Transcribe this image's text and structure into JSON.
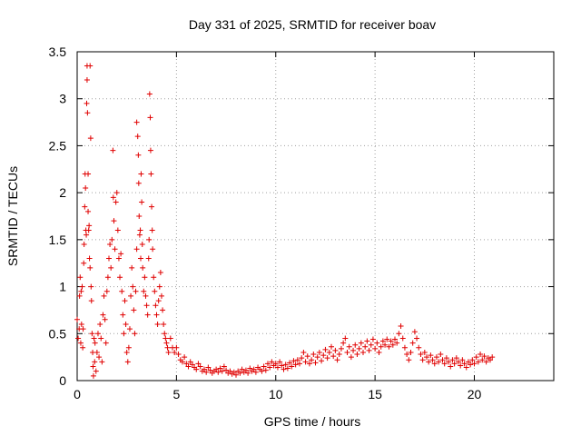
{
  "chart_data": {
    "type": "scatter",
    "title": "Day 331 of 2025, SRMTID for receiver boav",
    "xlabel": "GPS time / hours",
    "ylabel": "SRMTID / TECUs",
    "xlim": [
      0,
      24
    ],
    "ylim": [
      0,
      3.5
    ],
    "x_ticks": [
      0,
      5,
      10,
      15,
      20
    ],
    "x_tick_labels": [
      "0",
      "5",
      "10",
      "15",
      "20"
    ],
    "y_ticks": [
      0,
      0.5,
      1,
      1.5,
      2,
      2.5,
      3,
      3.5
    ],
    "y_tick_labels": [
      "0",
      "0.5",
      "1",
      "1.5",
      "2",
      "2.5",
      "3",
      "3.5"
    ],
    "grid": true,
    "marker": "plus",
    "color": "#e00000",
    "series": [
      {
        "name": "SRMTID",
        "points": [
          [
            0.0,
            0.65
          ],
          [
            0.05,
            0.45
          ],
          [
            0.1,
            0.55
          ],
          [
            0.12,
            0.9
          ],
          [
            0.15,
            1.1
          ],
          [
            0.18,
            0.4
          ],
          [
            0.2,
            0.95
          ],
          [
            0.22,
            0.6
          ],
          [
            0.25,
            1.0
          ],
          [
            0.28,
            0.35
          ],
          [
            0.3,
            0.55
          ],
          [
            0.33,
            1.25
          ],
          [
            0.35,
            1.45
          ],
          [
            0.38,
            1.85
          ],
          [
            0.4,
            2.2
          ],
          [
            0.42,
            2.05
          ],
          [
            0.44,
            1.6
          ],
          [
            0.46,
            1.55
          ],
          [
            0.48,
            2.95
          ],
          [
            0.5,
            3.35
          ],
          [
            0.5,
            3.2
          ],
          [
            0.52,
            2.85
          ],
          [
            0.55,
            2.2
          ],
          [
            0.55,
            1.8
          ],
          [
            0.58,
            1.6
          ],
          [
            0.6,
            1.65
          ],
          [
            0.62,
            1.3
          ],
          [
            0.65,
            1.2
          ],
          [
            0.65,
            3.35
          ],
          [
            0.68,
            2.58
          ],
          [
            0.7,
            1.0
          ],
          [
            0.72,
            0.85
          ],
          [
            0.75,
            0.5
          ],
          [
            0.78,
            0.3
          ],
          [
            0.8,
            0.15
          ],
          [
            0.82,
            0.05
          ],
          [
            0.85,
            0.45
          ],
          [
            0.88,
            0.2
          ],
          [
            0.9,
            0.4
          ],
          [
            0.95,
            0.1
          ],
          [
            1.0,
            0.3
          ],
          [
            1.05,
            0.5
          ],
          [
            1.1,
            0.25
          ],
          [
            1.15,
            0.6
          ],
          [
            1.2,
            0.45
          ],
          [
            1.25,
            0.2
          ],
          [
            1.3,
            0.7
          ],
          [
            1.35,
            0.9
          ],
          [
            1.4,
            0.65
          ],
          [
            1.45,
            0.4
          ],
          [
            1.5,
            0.95
          ],
          [
            1.55,
            1.1
          ],
          [
            1.6,
            1.3
          ],
          [
            1.65,
            1.45
          ],
          [
            1.7,
            1.2
          ],
          [
            1.75,
            1.5
          ],
          [
            1.8,
            2.45
          ],
          [
            1.82,
            1.95
          ],
          [
            1.85,
            1.7
          ],
          [
            1.9,
            1.4
          ],
          [
            1.95,
            1.9
          ],
          [
            2.0,
            2.0
          ],
          [
            2.05,
            1.6
          ],
          [
            2.1,
            1.3
          ],
          [
            2.15,
            1.1
          ],
          [
            2.2,
            1.35
          ],
          [
            2.25,
            0.95
          ],
          [
            2.3,
            0.7
          ],
          [
            2.35,
            0.5
          ],
          [
            2.4,
            0.85
          ],
          [
            2.45,
            0.6
          ],
          [
            2.5,
            0.3
          ],
          [
            2.55,
            0.2
          ],
          [
            2.6,
            0.35
          ],
          [
            2.65,
            0.55
          ],
          [
            2.7,
            0.9
          ],
          [
            2.75,
            1.2
          ],
          [
            2.8,
            1.0
          ],
          [
            2.85,
            0.75
          ],
          [
            2.9,
            0.5
          ],
          [
            2.95,
            0.95
          ],
          [
            3.0,
            1.4
          ],
          [
            3.0,
            2.75
          ],
          [
            3.05,
            2.6
          ],
          [
            3.08,
            2.4
          ],
          [
            3.1,
            2.1
          ],
          [
            3.12,
            1.75
          ],
          [
            3.15,
            1.55
          ],
          [
            3.18,
            1.6
          ],
          [
            3.2,
            1.3
          ],
          [
            3.22,
            2.2
          ],
          [
            3.25,
            1.9
          ],
          [
            3.28,
            1.45
          ],
          [
            3.3,
            1.2
          ],
          [
            3.35,
            0.95
          ],
          [
            3.4,
            1.1
          ],
          [
            3.45,
            0.9
          ],
          [
            3.5,
            0.8
          ],
          [
            3.55,
            0.7
          ],
          [
            3.6,
            1.3
          ],
          [
            3.62,
            1.5
          ],
          [
            3.65,
            3.05
          ],
          [
            3.68,
            2.8
          ],
          [
            3.7,
            2.45
          ],
          [
            3.72,
            2.2
          ],
          [
            3.75,
            1.85
          ],
          [
            3.78,
            1.6
          ],
          [
            3.8,
            1.4
          ],
          [
            3.85,
            1.1
          ],
          [
            3.9,
            0.95
          ],
          [
            3.95,
            0.8
          ],
          [
            4.0,
            0.7
          ],
          [
            4.05,
            0.6
          ],
          [
            4.1,
            0.85
          ],
          [
            4.15,
            1.0
          ],
          [
            4.2,
            1.15
          ],
          [
            4.25,
            0.9
          ],
          [
            4.3,
            0.75
          ],
          [
            4.35,
            0.6
          ],
          [
            4.4,
            0.5
          ],
          [
            4.45,
            0.45
          ],
          [
            4.5,
            0.4
          ],
          [
            4.55,
            0.35
          ],
          [
            4.6,
            0.3
          ],
          [
            4.7,
            0.45
          ],
          [
            4.8,
            0.35
          ],
          [
            4.9,
            0.3
          ],
          [
            5.0,
            0.35
          ],
          [
            5.1,
            0.28
          ],
          [
            5.2,
            0.22
          ],
          [
            5.3,
            0.2
          ],
          [
            5.4,
            0.25
          ],
          [
            5.5,
            0.18
          ],
          [
            5.6,
            0.15
          ],
          [
            5.7,
            0.2
          ],
          [
            5.8,
            0.17
          ],
          [
            5.9,
            0.14
          ],
          [
            6.0,
            0.12
          ],
          [
            6.1,
            0.18
          ],
          [
            6.2,
            0.15
          ],
          [
            6.3,
            0.1
          ],
          [
            6.4,
            0.12
          ],
          [
            6.5,
            0.09
          ],
          [
            6.6,
            0.14
          ],
          [
            6.7,
            0.11
          ],
          [
            6.8,
            0.08
          ],
          [
            6.9,
            0.1
          ],
          [
            7.0,
            0.12
          ],
          [
            7.1,
            0.09
          ],
          [
            7.2,
            0.13
          ],
          [
            7.3,
            0.1
          ],
          [
            7.4,
            0.15
          ],
          [
            7.5,
            0.11
          ],
          [
            7.6,
            0.08
          ],
          [
            7.7,
            0.1
          ],
          [
            7.8,
            0.07
          ],
          [
            7.9,
            0.09
          ],
          [
            8.0,
            0.06
          ],
          [
            8.1,
            0.1
          ],
          [
            8.2,
            0.08
          ],
          [
            8.3,
            0.12
          ],
          [
            8.4,
            0.09
          ],
          [
            8.5,
            0.11
          ],
          [
            8.6,
            0.08
          ],
          [
            8.7,
            0.13
          ],
          [
            8.8,
            0.1
          ],
          [
            8.9,
            0.12
          ],
          [
            9.0,
            0.09
          ],
          [
            9.1,
            0.14
          ],
          [
            9.2,
            0.12
          ],
          [
            9.3,
            0.1
          ],
          [
            9.4,
            0.15
          ],
          [
            9.5,
            0.11
          ],
          [
            9.6,
            0.18
          ],
          [
            9.7,
            0.14
          ],
          [
            9.8,
            0.2
          ],
          [
            9.9,
            0.16
          ],
          [
            10.0,
            0.18
          ],
          [
            10.1,
            0.14
          ],
          [
            10.2,
            0.2
          ],
          [
            10.3,
            0.16
          ],
          [
            10.4,
            0.12
          ],
          [
            10.5,
            0.17
          ],
          [
            10.6,
            0.13
          ],
          [
            10.7,
            0.19
          ],
          [
            10.8,
            0.15
          ],
          [
            10.9,
            0.21
          ],
          [
            11.0,
            0.17
          ],
          [
            11.1,
            0.22
          ],
          [
            11.2,
            0.18
          ],
          [
            11.3,
            0.24
          ],
          [
            11.4,
            0.3
          ],
          [
            11.5,
            0.2
          ],
          [
            11.6,
            0.26
          ],
          [
            11.7,
            0.18
          ],
          [
            11.8,
            0.22
          ],
          [
            11.9,
            0.28
          ],
          [
            12.0,
            0.19
          ],
          [
            12.1,
            0.25
          ],
          [
            12.2,
            0.3
          ],
          [
            12.3,
            0.21
          ],
          [
            12.4,
            0.27
          ],
          [
            12.5,
            0.33
          ],
          [
            12.6,
            0.24
          ],
          [
            12.7,
            0.3
          ],
          [
            12.8,
            0.36
          ],
          [
            12.9,
            0.26
          ],
          [
            13.0,
            0.32
          ],
          [
            13.1,
            0.22
          ],
          [
            13.2,
            0.28
          ],
          [
            13.3,
            0.34
          ],
          [
            13.4,
            0.4
          ],
          [
            13.5,
            0.45
          ],
          [
            13.6,
            0.3
          ],
          [
            13.7,
            0.36
          ],
          [
            13.8,
            0.25
          ],
          [
            13.9,
            0.32
          ],
          [
            14.0,
            0.38
          ],
          [
            14.1,
            0.28
          ],
          [
            14.2,
            0.34
          ],
          [
            14.3,
            0.4
          ],
          [
            14.4,
            0.3
          ],
          [
            14.5,
            0.36
          ],
          [
            14.6,
            0.42
          ],
          [
            14.7,
            0.32
          ],
          [
            14.8,
            0.38
          ],
          [
            14.9,
            0.44
          ],
          [
            15.0,
            0.34
          ],
          [
            15.1,
            0.4
          ],
          [
            15.2,
            0.3
          ],
          [
            15.3,
            0.36
          ],
          [
            15.4,
            0.42
          ],
          [
            15.5,
            0.38
          ],
          [
            15.6,
            0.44
          ],
          [
            15.7,
            0.36
          ],
          [
            15.8,
            0.42
          ],
          [
            15.9,
            0.38
          ],
          [
            16.0,
            0.44
          ],
          [
            16.1,
            0.4
          ],
          [
            16.2,
            0.5
          ],
          [
            16.3,
            0.58
          ],
          [
            16.4,
            0.45
          ],
          [
            16.5,
            0.35
          ],
          [
            16.6,
            0.28
          ],
          [
            16.7,
            0.22
          ],
          [
            16.8,
            0.3
          ],
          [
            16.9,
            0.4
          ],
          [
            17.0,
            0.52
          ],
          [
            17.1,
            0.45
          ],
          [
            17.2,
            0.35
          ],
          [
            17.3,
            0.28
          ],
          [
            17.4,
            0.22
          ],
          [
            17.5,
            0.3
          ],
          [
            17.6,
            0.25
          ],
          [
            17.7,
            0.2
          ],
          [
            17.8,
            0.27
          ],
          [
            17.9,
            0.22
          ],
          [
            18.0,
            0.18
          ],
          [
            18.1,
            0.25
          ],
          [
            18.2,
            0.2
          ],
          [
            18.3,
            0.28
          ],
          [
            18.4,
            0.22
          ],
          [
            18.5,
            0.18
          ],
          [
            18.6,
            0.24
          ],
          [
            18.7,
            0.2
          ],
          [
            18.8,
            0.15
          ],
          [
            18.9,
            0.22
          ],
          [
            19.0,
            0.18
          ],
          [
            19.1,
            0.24
          ],
          [
            19.2,
            0.2
          ],
          [
            19.3,
            0.16
          ],
          [
            19.4,
            0.22
          ],
          [
            19.5,
            0.18
          ],
          [
            19.6,
            0.14
          ],
          [
            19.7,
            0.2
          ],
          [
            19.8,
            0.17
          ],
          [
            19.9,
            0.22
          ],
          [
            20.0,
            0.18
          ],
          [
            20.1,
            0.25
          ],
          [
            20.2,
            0.2
          ],
          [
            20.3,
            0.28
          ],
          [
            20.4,
            0.22
          ],
          [
            20.5,
            0.26
          ],
          [
            20.6,
            0.2
          ],
          [
            20.7,
            0.24
          ],
          [
            20.8,
            0.22
          ],
          [
            20.9,
            0.25
          ]
        ]
      }
    ]
  }
}
